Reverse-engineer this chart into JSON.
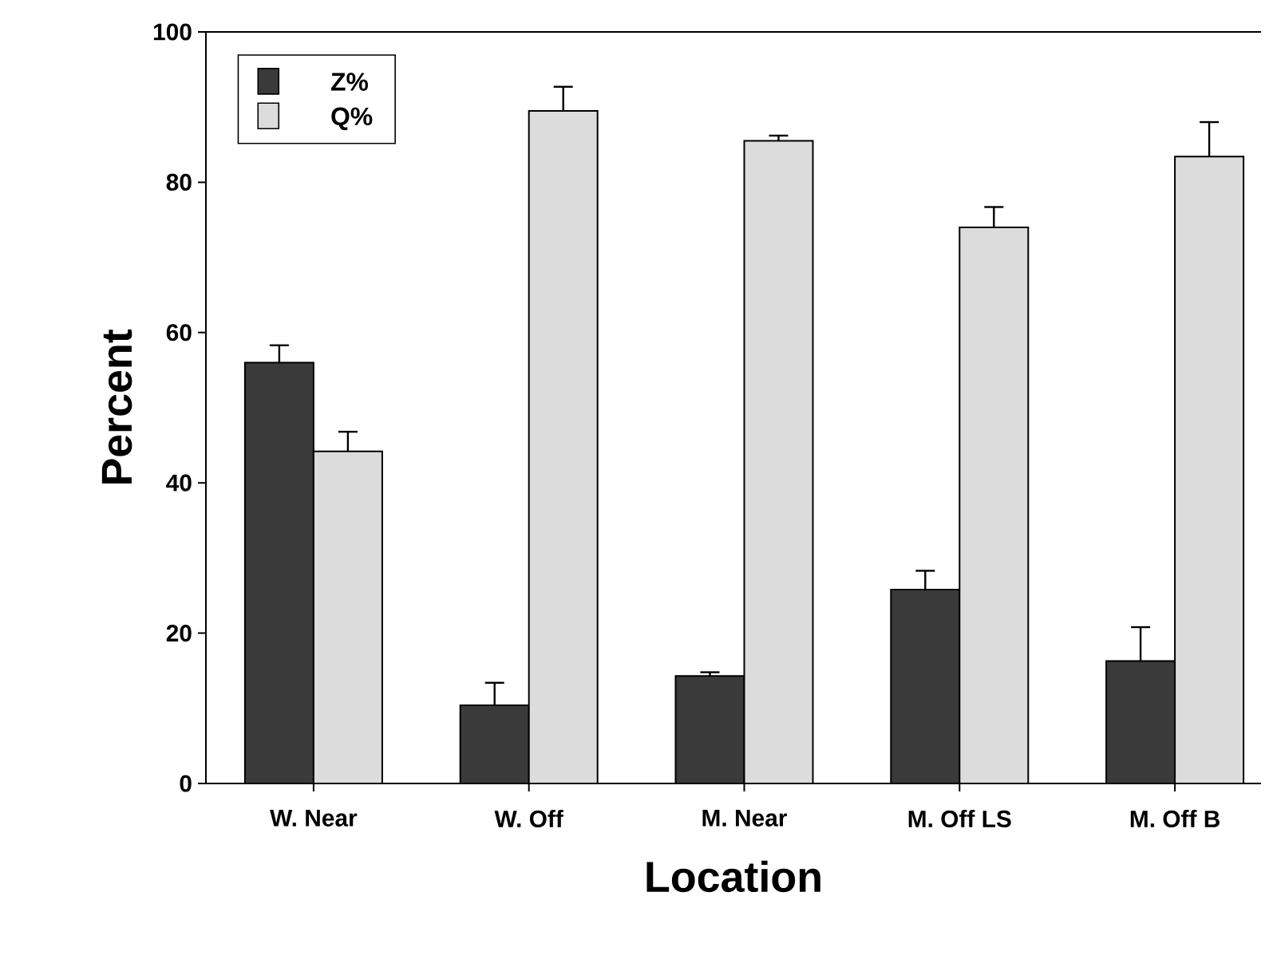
{
  "chart_data": {
    "type": "bar",
    "xlabel": "Location",
    "ylabel": "Percent",
    "categories": [
      "W. Near",
      "W. Off",
      "M. Near",
      "M. Off LS",
      "M. Off B"
    ],
    "series": [
      {
        "name": "Z%",
        "color": "#3a3a3a",
        "values": [
          56.0,
          10.4,
          14.3,
          25.8,
          16.3
        ],
        "errors": [
          [
            56.0,
            58.3
          ],
          [
            10.4,
            13.4
          ],
          [
            14.3,
            14.8
          ],
          [
            25.8,
            28.3
          ],
          [
            16.3,
            20.8
          ]
        ]
      },
      {
        "name": "Q%",
        "color": "#dcdcdc",
        "values": [
          44.2,
          89.5,
          85.5,
          74.0,
          83.4
        ],
        "errors": [
          [
            44.2,
            46.8
          ],
          [
            89.5,
            92.7
          ],
          [
            85.5,
            86.2
          ],
          [
            74.0,
            76.7
          ],
          [
            83.4,
            88.0
          ]
        ]
      }
    ],
    "ylim": [
      0,
      100
    ],
    "yticks": [
      0,
      20,
      40,
      60,
      80,
      100
    ],
    "grid": false,
    "legend": "top left"
  }
}
